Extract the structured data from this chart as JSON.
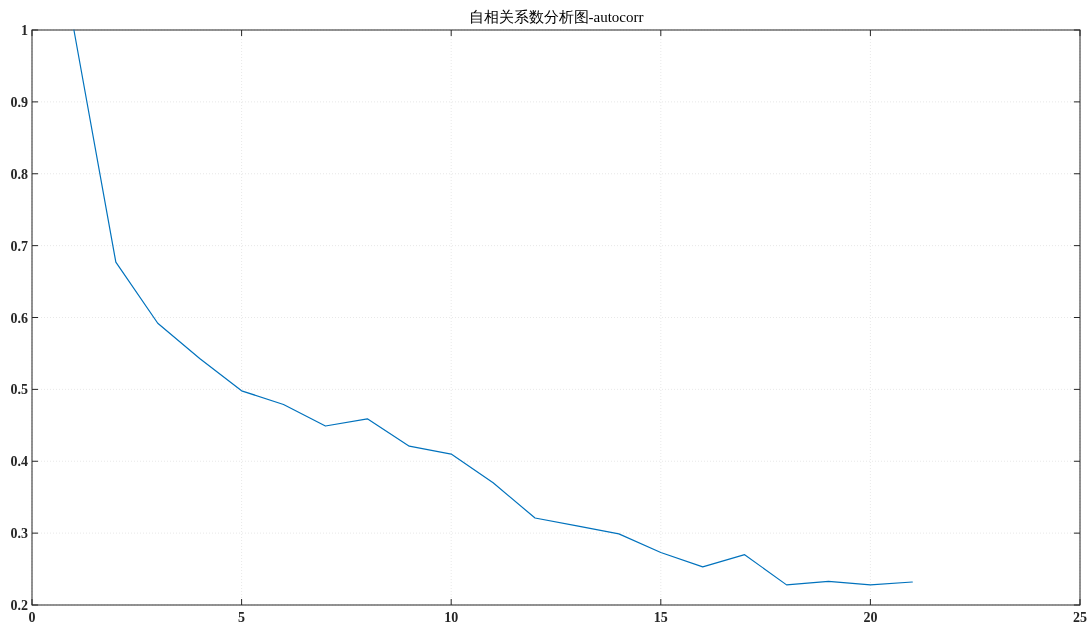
{
  "chart_data": {
    "type": "line",
    "title": "自相关系数分析图-autocorr",
    "x": [
      1,
      2,
      3,
      4,
      5,
      6,
      7,
      8,
      9,
      10,
      11,
      12,
      13,
      14,
      15,
      16,
      17,
      18,
      19,
      20,
      21
    ],
    "series": [
      {
        "color": "#0072bd",
        "values": [
          1.0,
          0.677,
          0.592,
          0.543,
          0.498,
          0.479,
          0.449,
          0.459,
          0.421,
          0.41,
          0.37,
          0.321,
          0.31,
          0.299,
          0.273,
          0.253,
          0.27,
          0.228,
          0.233,
          0.228,
          0.232
        ]
      }
    ],
    "xlim": [
      0,
      25
    ],
    "xticks": [
      0,
      5,
      10,
      15,
      20,
      25
    ],
    "ylim": [
      0.2,
      1
    ],
    "yticks": [
      0.2,
      0.3,
      0.4,
      0.5,
      0.6,
      0.7,
      0.8,
      0.9,
      1
    ],
    "grid": true,
    "marker": "none",
    "line_style": "solid"
  }
}
